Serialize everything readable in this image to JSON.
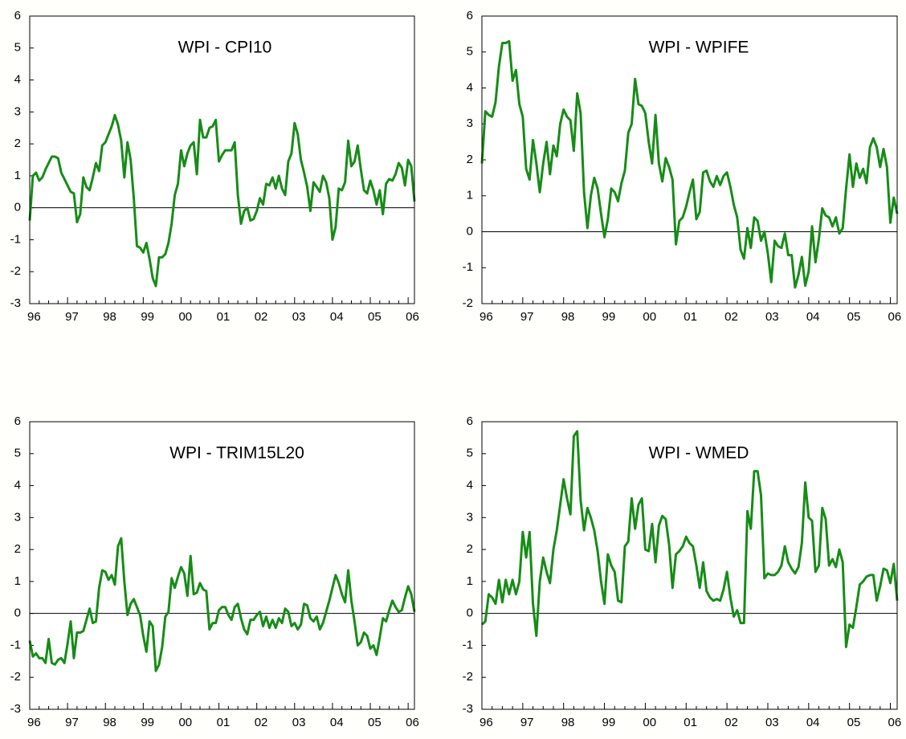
{
  "chart_data": [
    {
      "type": "line",
      "title": "WPI - CPI10",
      "color": "#168c16",
      "ylim": [
        -3,
        6
      ],
      "yticks": [
        -3,
        -2,
        -1,
        0,
        1,
        2,
        3,
        4,
        5,
        6
      ],
      "categories": [
        "96",
        null,
        null,
        null,
        null,
        null,
        null,
        null,
        null,
        null,
        null,
        null,
        "97",
        null,
        null,
        null,
        null,
        null,
        null,
        null,
        null,
        null,
        null,
        null,
        "98",
        null,
        null,
        null,
        null,
        null,
        null,
        null,
        null,
        null,
        null,
        null,
        "99",
        null,
        null,
        null,
        null,
        null,
        null,
        null,
        null,
        null,
        null,
        null,
        "00",
        null,
        null,
        null,
        null,
        null,
        null,
        null,
        null,
        null,
        null,
        null,
        "01",
        null,
        null,
        null,
        null,
        null,
        null,
        null,
        null,
        null,
        null,
        null,
        "02",
        null,
        null,
        null,
        null,
        null,
        null,
        null,
        null,
        null,
        null,
        null,
        "03",
        null,
        null,
        null,
        null,
        null,
        null,
        null,
        null,
        null,
        null,
        null,
        "04",
        null,
        null,
        null,
        null,
        null,
        null,
        null,
        null,
        null,
        null,
        null,
        "05",
        null,
        null,
        null,
        null,
        null,
        null,
        null,
        null,
        null,
        null,
        null,
        "06",
        null,
        null
      ],
      "values": [
        -0.4,
        1.0,
        1.1,
        0.85,
        0.95,
        1.2,
        1.4,
        1.6,
        1.6,
        1.55,
        1.1,
        0.9,
        0.7,
        0.5,
        0.45,
        -0.45,
        -0.2,
        0.95,
        0.65,
        0.55,
        0.95,
        1.4,
        1.15,
        1.95,
        2.05,
        2.3,
        2.55,
        2.9,
        2.6,
        2.1,
        0.95,
        2.05,
        1.5,
        0.3,
        -1.2,
        -1.25,
        -1.4,
        -1.1,
        -1.6,
        -2.2,
        -2.45,
        -1.55,
        -1.55,
        -1.45,
        -1.1,
        -0.5,
        0.4,
        0.75,
        1.8,
        1.3,
        1.7,
        1.95,
        2.05,
        1.05,
        2.75,
        2.2,
        2.2,
        2.5,
        2.55,
        2.75,
        1.45,
        1.65,
        1.8,
        1.8,
        1.8,
        2.05,
        0.4,
        -0.5,
        -0.1,
        0.0,
        -0.4,
        -0.35,
        -0.1,
        0.3,
        0.1,
        0.75,
        0.7,
        0.95,
        0.6,
        1.0,
        0.6,
        0.4,
        1.45,
        1.7,
        2.65,
        2.3,
        1.5,
        1.1,
        0.65,
        -0.1,
        0.8,
        0.65,
        0.5,
        1.0,
        0.8,
        0.3,
        -1.0,
        -0.6,
        0.6,
        0.55,
        0.8,
        2.1,
        1.3,
        1.45,
        1.95,
        1.2,
        0.55,
        0.45,
        0.85,
        0.55,
        0.1,
        0.55,
        -0.2,
        0.75,
        0.9,
        0.85,
        1.05,
        1.4,
        1.25,
        0.7,
        1.5,
        1.3,
        0.2
      ]
    },
    {
      "type": "line",
      "title": "WPI - WPIFE",
      "color": "#168c16",
      "ylim": [
        -2,
        6
      ],
      "yticks": [
        -2,
        -1,
        0,
        1,
        2,
        3,
        4,
        5,
        6
      ],
      "categories": [
        "96",
        null,
        null,
        null,
        null,
        null,
        null,
        null,
        null,
        null,
        null,
        null,
        "97",
        null,
        null,
        null,
        null,
        null,
        null,
        null,
        null,
        null,
        null,
        null,
        "98",
        null,
        null,
        null,
        null,
        null,
        null,
        null,
        null,
        null,
        null,
        null,
        "99",
        null,
        null,
        null,
        null,
        null,
        null,
        null,
        null,
        null,
        null,
        null,
        "00",
        null,
        null,
        null,
        null,
        null,
        null,
        null,
        null,
        null,
        null,
        null,
        "01",
        null,
        null,
        null,
        null,
        null,
        null,
        null,
        null,
        null,
        null,
        null,
        "02",
        null,
        null,
        null,
        null,
        null,
        null,
        null,
        null,
        null,
        null,
        null,
        "03",
        null,
        null,
        null,
        null,
        null,
        null,
        null,
        null,
        null,
        null,
        null,
        "04",
        null,
        null,
        null,
        null,
        null,
        null,
        null,
        null,
        null,
        null,
        null,
        "05",
        null,
        null,
        null,
        null,
        null,
        null,
        null,
        null,
        null,
        null,
        null,
        "06",
        null,
        null
      ],
      "values": [
        1.9,
        3.35,
        3.25,
        3.2,
        3.6,
        4.6,
        5.25,
        5.25,
        5.3,
        4.2,
        4.5,
        3.55,
        3.2,
        1.75,
        1.45,
        2.55,
        1.9,
        1.1,
        1.9,
        2.5,
        1.6,
        2.4,
        2.1,
        3.0,
        3.4,
        3.2,
        3.1,
        2.25,
        3.85,
        3.3,
        1.1,
        0.1,
        1.0,
        1.5,
        1.2,
        0.5,
        -0.15,
        0.35,
        1.2,
        1.1,
        0.85,
        1.35,
        1.7,
        2.75,
        3.0,
        4.25,
        3.55,
        3.5,
        3.3,
        2.5,
        1.9,
        3.25,
        1.9,
        1.4,
        2.05,
        1.8,
        1.45,
        -0.35,
        0.3,
        0.4,
        0.7,
        1.1,
        1.45,
        0.35,
        0.55,
        1.65,
        1.7,
        1.4,
        1.25,
        1.55,
        1.3,
        1.55,
        1.65,
        1.25,
        0.75,
        0.4,
        -0.5,
        -0.75,
        0.1,
        -0.45,
        0.4,
        0.3,
        -0.25,
        0.0,
        -0.6,
        -1.4,
        -0.25,
        -0.4,
        -0.45,
        -0.05,
        -0.65,
        -0.65,
        -1.55,
        -1.2,
        -0.7,
        -1.5,
        -1.1,
        0.15,
        -0.85,
        -0.2,
        0.65,
        0.45,
        0.4,
        0.15,
        0.4,
        -0.05,
        0.1,
        1.2,
        2.15,
        1.25,
        1.9,
        1.5,
        1.75,
        1.35,
        2.35,
        2.6,
        2.35,
        1.8,
        2.3,
        1.8,
        0.25,
        0.95,
        0.5
      ]
    },
    {
      "type": "line",
      "title": "WPI - TRIM15L20",
      "color": "#168c16",
      "ylim": [
        -3,
        6
      ],
      "yticks": [
        -3,
        -2,
        -1,
        0,
        1,
        2,
        3,
        4,
        5,
        6
      ],
      "categories": [
        "96",
        null,
        null,
        null,
        null,
        null,
        null,
        null,
        null,
        null,
        null,
        null,
        "97",
        null,
        null,
        null,
        null,
        null,
        null,
        null,
        null,
        null,
        null,
        null,
        "98",
        null,
        null,
        null,
        null,
        null,
        null,
        null,
        null,
        null,
        null,
        null,
        "99",
        null,
        null,
        null,
        null,
        null,
        null,
        null,
        null,
        null,
        null,
        null,
        "00",
        null,
        null,
        null,
        null,
        null,
        null,
        null,
        null,
        null,
        null,
        null,
        "01",
        null,
        null,
        null,
        null,
        null,
        null,
        null,
        null,
        null,
        null,
        null,
        "02",
        null,
        null,
        null,
        null,
        null,
        null,
        null,
        null,
        null,
        null,
        null,
        "03",
        null,
        null,
        null,
        null,
        null,
        null,
        null,
        null,
        null,
        null,
        null,
        "04",
        null,
        null,
        null,
        null,
        null,
        null,
        null,
        null,
        null,
        null,
        null,
        "05",
        null,
        null,
        null,
        null,
        null,
        null,
        null,
        null,
        null,
        null,
        null,
        "06",
        null,
        null
      ],
      "values": [
        -0.85,
        -1.35,
        -1.25,
        -1.4,
        -1.4,
        -1.55,
        -0.8,
        -1.55,
        -1.6,
        -1.45,
        -1.4,
        -1.55,
        -0.95,
        -0.25,
        -1.4,
        -0.6,
        -0.6,
        -0.55,
        -0.2,
        0.15,
        -0.3,
        -0.25,
        0.8,
        1.35,
        1.3,
        1.05,
        1.2,
        0.9,
        2.1,
        2.35,
        1.0,
        -0.05,
        0.3,
        0.45,
        0.2,
        -0.05,
        -0.7,
        -1.2,
        -0.25,
        -0.4,
        -1.8,
        -1.6,
        -1.05,
        -0.1,
        0.05,
        1.1,
        0.8,
        1.15,
        1.45,
        1.25,
        0.55,
        1.8,
        0.6,
        0.65,
        0.95,
        0.75,
        0.7,
        -0.5,
        -0.3,
        -0.3,
        0.1,
        0.2,
        0.2,
        -0.05,
        -0.2,
        0.2,
        0.3,
        -0.15,
        -0.5,
        -0.65,
        -0.2,
        -0.2,
        -0.05,
        0.05,
        -0.4,
        -0.1,
        -0.45,
        -0.2,
        -0.45,
        -0.15,
        -0.3,
        0.15,
        0.05,
        -0.4,
        -0.3,
        -0.5,
        -0.35,
        0.3,
        0.25,
        -0.15,
        -0.25,
        -0.1,
        -0.5,
        -0.3,
        0.05,
        0.4,
        0.8,
        1.2,
        0.95,
        0.6,
        0.35,
        1.35,
        0.4,
        -0.25,
        -1.0,
        -0.9,
        -0.6,
        -0.7,
        -1.1,
        -1.0,
        -1.3,
        -0.75,
        -0.15,
        -0.25,
        0.1,
        0.4,
        0.2,
        0.05,
        0.1,
        0.5,
        0.85,
        0.6,
        0.05
      ]
    },
    {
      "type": "line",
      "title": "WPI - WMED",
      "color": "#168c16",
      "ylim": [
        -3,
        6
      ],
      "yticks": [
        -3,
        -2,
        -1,
        0,
        1,
        2,
        3,
        4,
        5,
        6
      ],
      "categories": [
        "96",
        null,
        null,
        null,
        null,
        null,
        null,
        null,
        null,
        null,
        null,
        null,
        "97",
        null,
        null,
        null,
        null,
        null,
        null,
        null,
        null,
        null,
        null,
        null,
        "98",
        null,
        null,
        null,
        null,
        null,
        null,
        null,
        null,
        null,
        null,
        null,
        "99",
        null,
        null,
        null,
        null,
        null,
        null,
        null,
        null,
        null,
        null,
        null,
        "00",
        null,
        null,
        null,
        null,
        null,
        null,
        null,
        null,
        null,
        null,
        null,
        "01",
        null,
        null,
        null,
        null,
        null,
        null,
        null,
        null,
        null,
        null,
        null,
        "02",
        null,
        null,
        null,
        null,
        null,
        null,
        null,
        null,
        null,
        null,
        null,
        "03",
        null,
        null,
        null,
        null,
        null,
        null,
        null,
        null,
        null,
        null,
        null,
        "04",
        null,
        null,
        null,
        null,
        null,
        null,
        null,
        null,
        null,
        null,
        null,
        "05",
        null,
        null,
        null,
        null,
        null,
        null,
        null,
        null,
        null,
        null,
        null,
        "06",
        null,
        null
      ],
      "values": [
        -0.35,
        -0.25,
        0.6,
        0.5,
        0.3,
        1.05,
        0.35,
        1.05,
        0.6,
        1.05,
        0.6,
        1.0,
        2.55,
        1.75,
        2.55,
        0.3,
        -0.7,
        1.0,
        1.75,
        1.3,
        0.95,
        2.0,
        2.6,
        3.4,
        4.2,
        3.6,
        3.1,
        5.55,
        5.7,
        3.55,
        2.6,
        3.3,
        3.0,
        2.6,
        1.95,
        1.0,
        0.3,
        1.85,
        1.5,
        1.3,
        0.4,
        0.35,
        2.1,
        2.25,
        3.6,
        2.65,
        3.4,
        3.6,
        2.0,
        1.95,
        2.8,
        1.6,
        2.75,
        3.05,
        2.95,
        2.15,
        0.8,
        1.85,
        1.95,
        2.1,
        2.4,
        2.2,
        2.1,
        1.5,
        0.8,
        1.6,
        0.7,
        0.5,
        0.4,
        0.45,
        0.4,
        0.75,
        1.3,
        0.5,
        -0.1,
        0.1,
        -0.3,
        -0.3,
        3.2,
        2.65,
        4.45,
        4.45,
        3.7,
        1.1,
        1.25,
        1.2,
        1.2,
        1.3,
        1.5,
        2.1,
        1.6,
        1.4,
        1.25,
        1.45,
        2.2,
        4.1,
        3.0,
        2.9,
        1.3,
        1.5,
        3.3,
        2.95,
        1.5,
        1.7,
        1.45,
        2.0,
        1.6,
        -1.05,
        -0.35,
        -0.45,
        0.2,
        0.9,
        1.0,
        1.15,
        1.2,
        1.2,
        0.4,
        0.85,
        1.4,
        1.35,
        0.95,
        1.55,
        0.4
      ]
    }
  ]
}
